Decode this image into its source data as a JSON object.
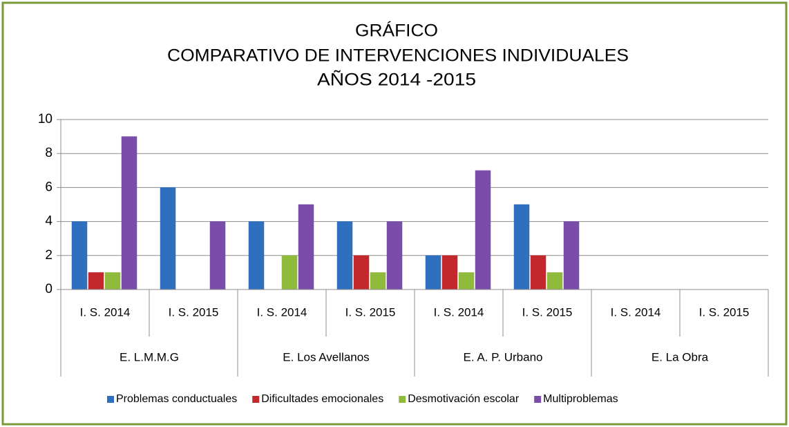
{
  "chart_data": {
    "type": "bar",
    "title": [
      "GRÁFICO",
      "COMPARATIVO DE INTERVENCIONES INDIVIDUALES",
      "AÑOS 2014 -2015"
    ],
    "groups": [
      "E. L.M.M.G",
      "E. Los Avellanos",
      "E. A. P. Urbano",
      "E. La Obra"
    ],
    "categories": [
      "I. S. 2014",
      "I. S. 2015",
      "I. S. 2014",
      "I. S. 2015",
      "I. S. 2014",
      "I. S. 2015",
      "I. S. 2014",
      "I. S. 2015"
    ],
    "series": [
      {
        "name": "Problemas conductuales",
        "color": "#2e6fc0",
        "values": [
          4,
          6,
          4,
          4,
          2,
          5,
          0,
          0
        ]
      },
      {
        "name": "Dificultades emocionales",
        "color": "#c3282d",
        "values": [
          1,
          0,
          0,
          2,
          2,
          2,
          0,
          0
        ]
      },
      {
        "name": "Desmotivación escolar",
        "color": "#8fba3c",
        "values": [
          1,
          0,
          2,
          1,
          1,
          1,
          0,
          0
        ]
      },
      {
        "name": "Multiproblemas",
        "color": "#7a4ea8",
        "values": [
          9,
          4,
          5,
          4,
          7,
          4,
          0,
          0
        ]
      }
    ],
    "ylim": [
      0,
      10
    ],
    "yticks": [
      0,
      2,
      4,
      6,
      8,
      10
    ],
    "grid": true,
    "legend": "bottom"
  }
}
